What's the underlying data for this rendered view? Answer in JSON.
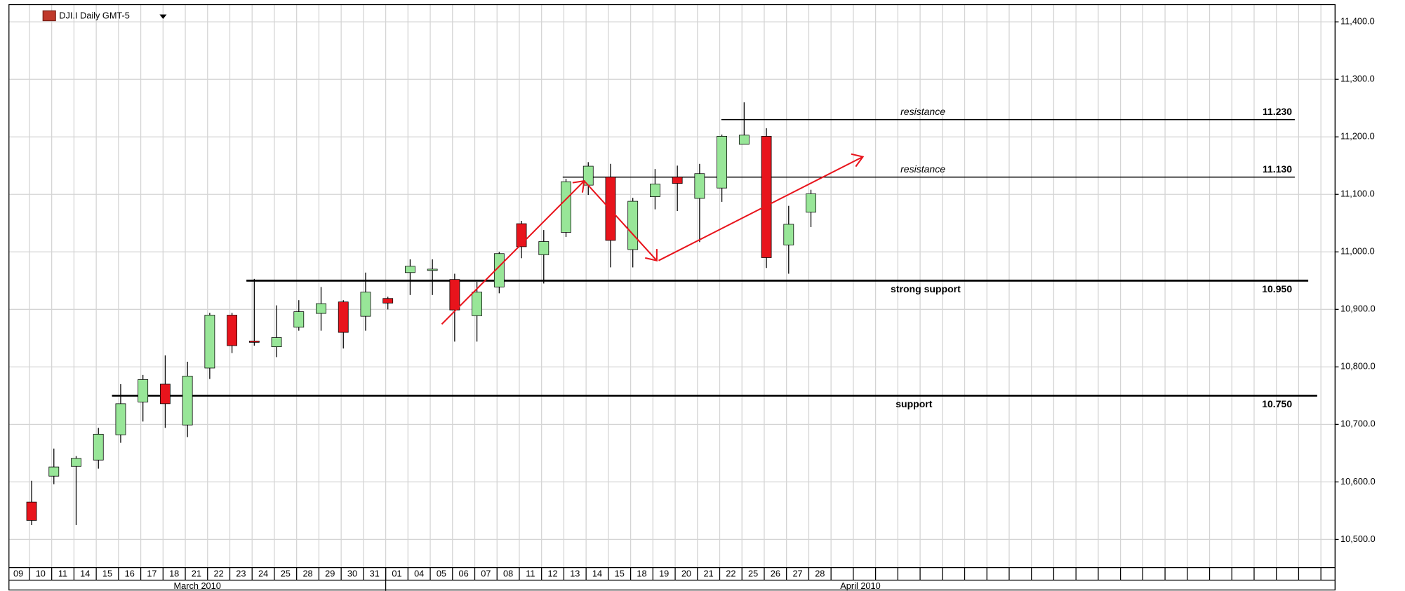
{
  "chart_data": {
    "type": "candlestick",
    "title": "DJI.I Daily GMT-5",
    "categories": [
      "09",
      "10",
      "11",
      "14",
      "15",
      "16",
      "17",
      "18",
      "21",
      "22",
      "23",
      "24",
      "25",
      "28",
      "29",
      "30",
      "31",
      "01",
      "04",
      "05",
      "06",
      "07",
      "08",
      "11",
      "12",
      "13",
      "14",
      "15",
      "18",
      "19",
      "20",
      "21",
      "22",
      "25",
      "26",
      "27",
      "28"
    ],
    "open": [
      null,
      10565,
      10610,
      10627,
      10638,
      10682,
      10739,
      10770,
      10699,
      10798,
      10890,
      10845,
      10835,
      10869,
      10893,
      10913,
      10888,
      10919,
      10964,
      10968,
      10952,
      10889,
      10939,
      11049,
      10995,
      11034,
      11116,
      11130,
      11004,
      11096,
      11130,
      11093,
      11111,
      11187,
      11201,
      11012,
      11069
    ],
    "high": [
      null,
      10602,
      10658,
      10645,
      10694,
      10770,
      10786,
      10820,
      10809,
      10894,
      10894,
      10953,
      10907,
      10916,
      10939,
      10916,
      10964,
      10922,
      10987,
      10987,
      10962,
      10948,
      11000,
      11054,
      11038,
      11127,
      11156,
      11153,
      11094,
      11144,
      11150,
      11153,
      11204,
      11260,
      11215,
      11080,
      11108
    ],
    "low": [
      null,
      10525,
      10596,
      10525,
      10623,
      10668,
      10705,
      10694,
      10678,
      10779,
      10824,
      10837,
      10817,
      10863,
      10863,
      10832,
      10863,
      10900,
      10925,
      10925,
      10844,
      10844,
      10928,
      10989,
      10945,
      11026,
      11099,
      10973,
      10973,
      11074,
      11071,
      11017,
      11087,
      11187,
      10972,
      10962,
      11043
    ],
    "close": [
      null,
      10533,
      10626,
      10641,
      10683,
      10736,
      10778,
      10736,
      10784,
      10890,
      10837,
      10843,
      10851,
      10896,
      10910,
      10860,
      10930,
      10911,
      10975,
      10970,
      10899,
      10930,
      10997,
      11009,
      11018,
      11122,
      11149,
      11020,
      11088,
      11118,
      11119,
      11136,
      11201,
      11203,
      10990,
      11048,
      11101
    ],
    "up_color": "#98e698",
    "down_color": "#e8141c",
    "months": [
      "March 2010",
      "April 2010"
    ],
    "levels": [
      {
        "name": "resistance",
        "value": 11230,
        "label": "11.230"
      },
      {
        "name": "resistance",
        "value": 11130,
        "label": "11.130"
      },
      {
        "name": "strong support",
        "value": 10950,
        "label": "10.950"
      },
      {
        "name": "support",
        "value": 10750,
        "label": "10.750"
      }
    ],
    "ylim": [
      10465,
      11430
    ],
    "yticks": [
      {
        "value": 10500,
        "label": "10,500.0"
      },
      {
        "value": 10600,
        "label": "10,600.0"
      },
      {
        "value": 10700,
        "label": "10,700.0"
      },
      {
        "value": 10800,
        "label": "10,800.0"
      },
      {
        "value": 10900,
        "label": "10,900.0"
      },
      {
        "value": 11000,
        "label": "11,000.0"
      },
      {
        "value": 11100,
        "label": "11,100.0"
      },
      {
        "value": 11200,
        "label": "11,200.0"
      },
      {
        "value": 11300,
        "label": "11,300.0"
      },
      {
        "value": 11400,
        "label": "11,400.0"
      }
    ],
    "grid": true
  }
}
